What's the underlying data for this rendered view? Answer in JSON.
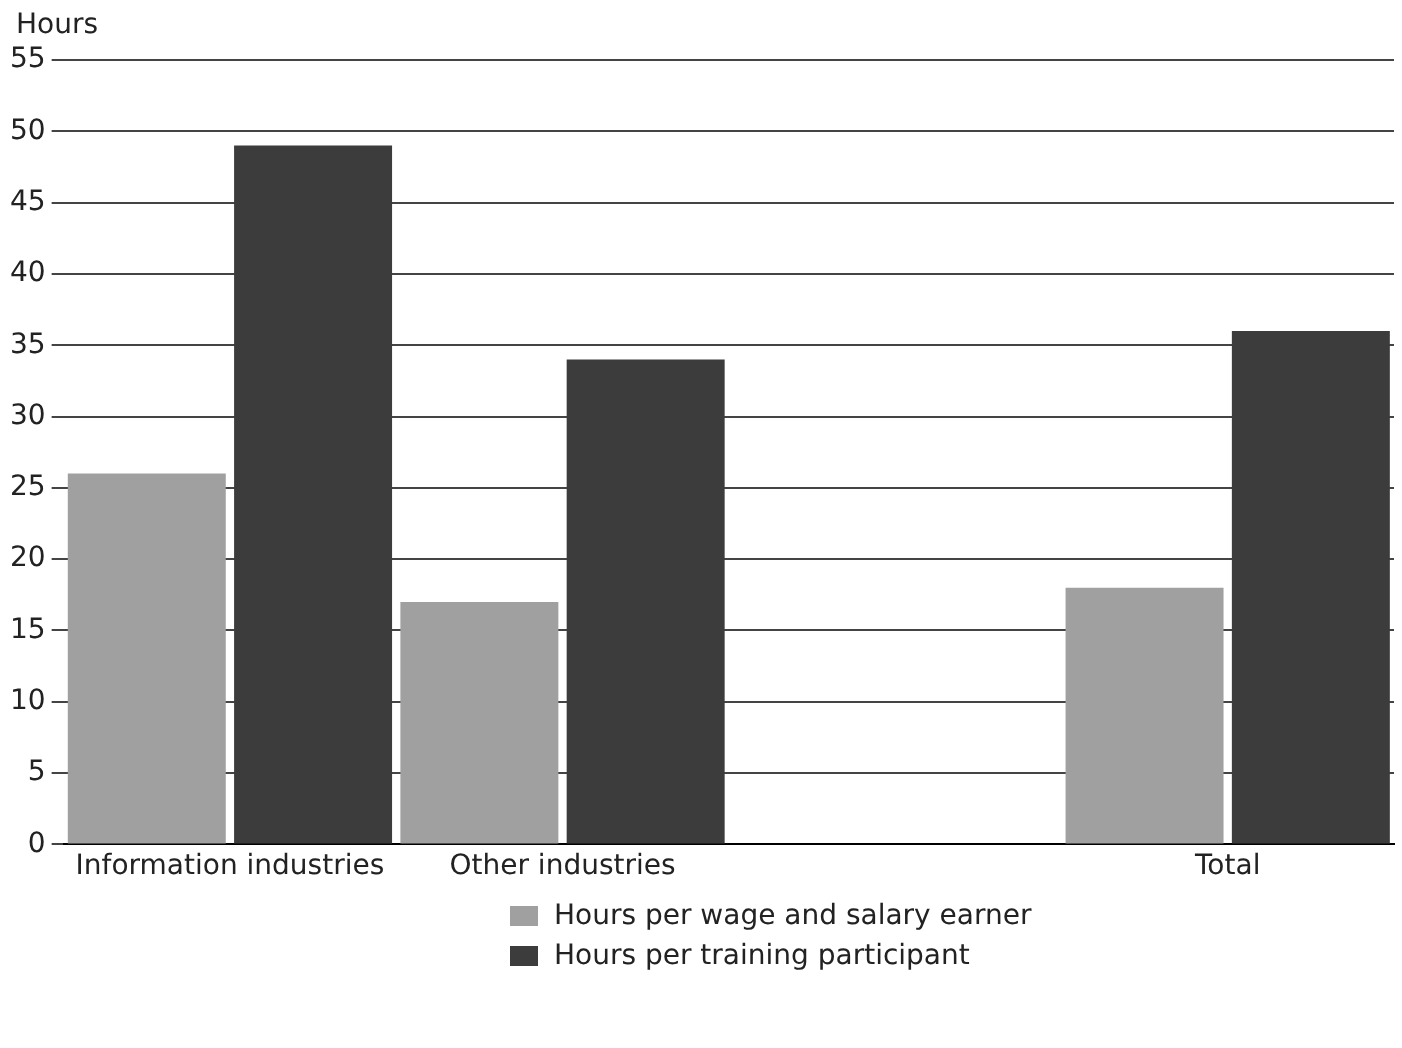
{
  "chart_data": {
    "type": "bar",
    "ylabel": "Hours",
    "categories": [
      "Information industries",
      "Other industries",
      null,
      "Total"
    ],
    "series": [
      {
        "name": "Hours per wage and salary earner",
        "color": "#a0a0a0",
        "values": [
          26,
          17,
          null,
          18
        ]
      },
      {
        "name": "Hours per training participant",
        "color": "#3c3c3c",
        "values": [
          49,
          34,
          null,
          36
        ]
      }
    ],
    "ylim": [
      0,
      55
    ],
    "yticks": [
      0,
      5,
      10,
      15,
      20,
      25,
      30,
      35,
      40,
      45,
      50,
      55
    ],
    "grid": "y",
    "legend": "bottom"
  }
}
